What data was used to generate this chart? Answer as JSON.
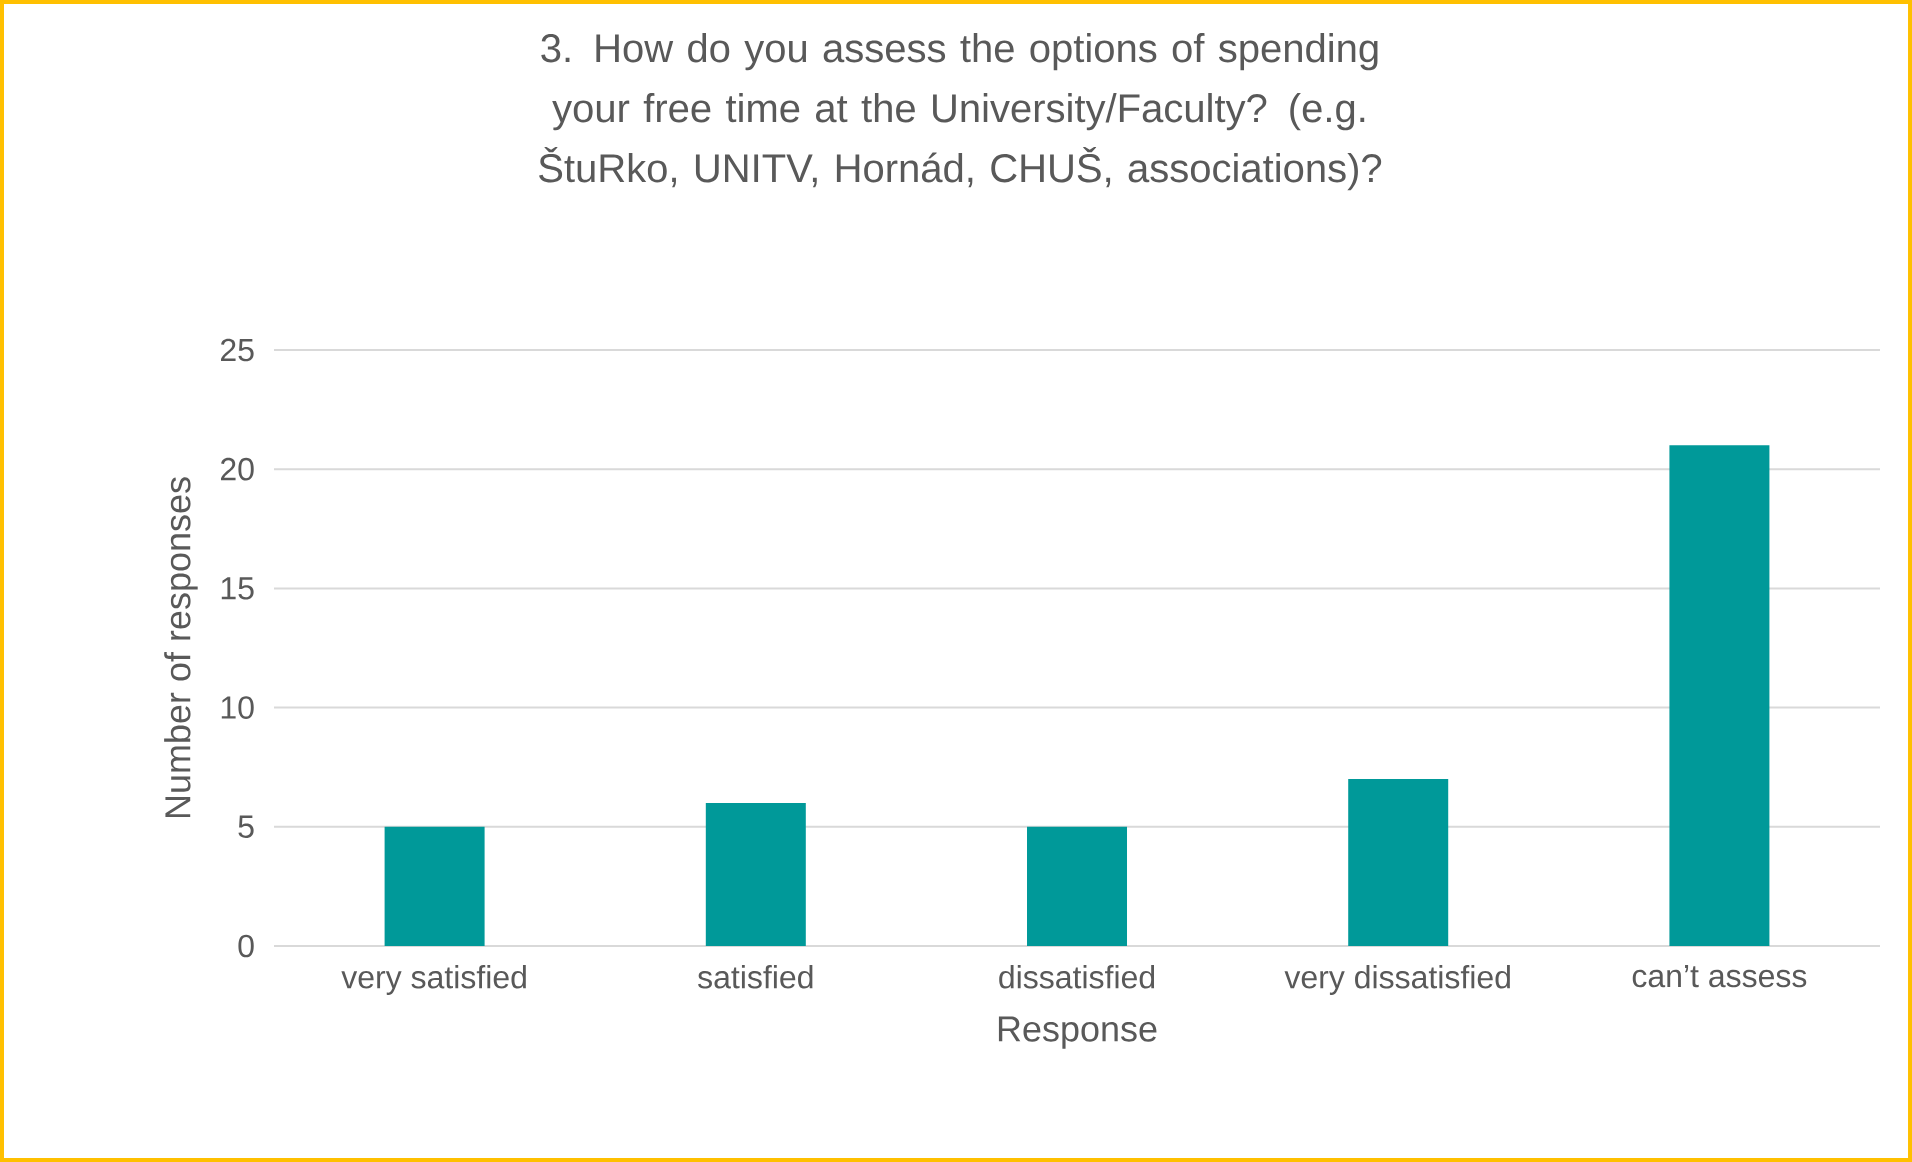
{
  "chart_data": {
    "type": "bar",
    "title": "3. How do you assess the options of spending your free time at the University/Faculty? (e.g. ŠtuRko, UNITV, Hornád, CHUŠ, associations)?",
    "xlabel": "Response",
    "ylabel": "Number of responses",
    "categories": [
      "very satisfied",
      "satisfied",
      "dissatisfied",
      "very dissatisfied",
      "can’t assess"
    ],
    "values": [
      5,
      6,
      5,
      7,
      21
    ],
    "color": "#009999",
    "ylim": [
      0,
      25
    ],
    "yticks": [
      0,
      5,
      10,
      15,
      20,
      25
    ],
    "grid": "y"
  }
}
